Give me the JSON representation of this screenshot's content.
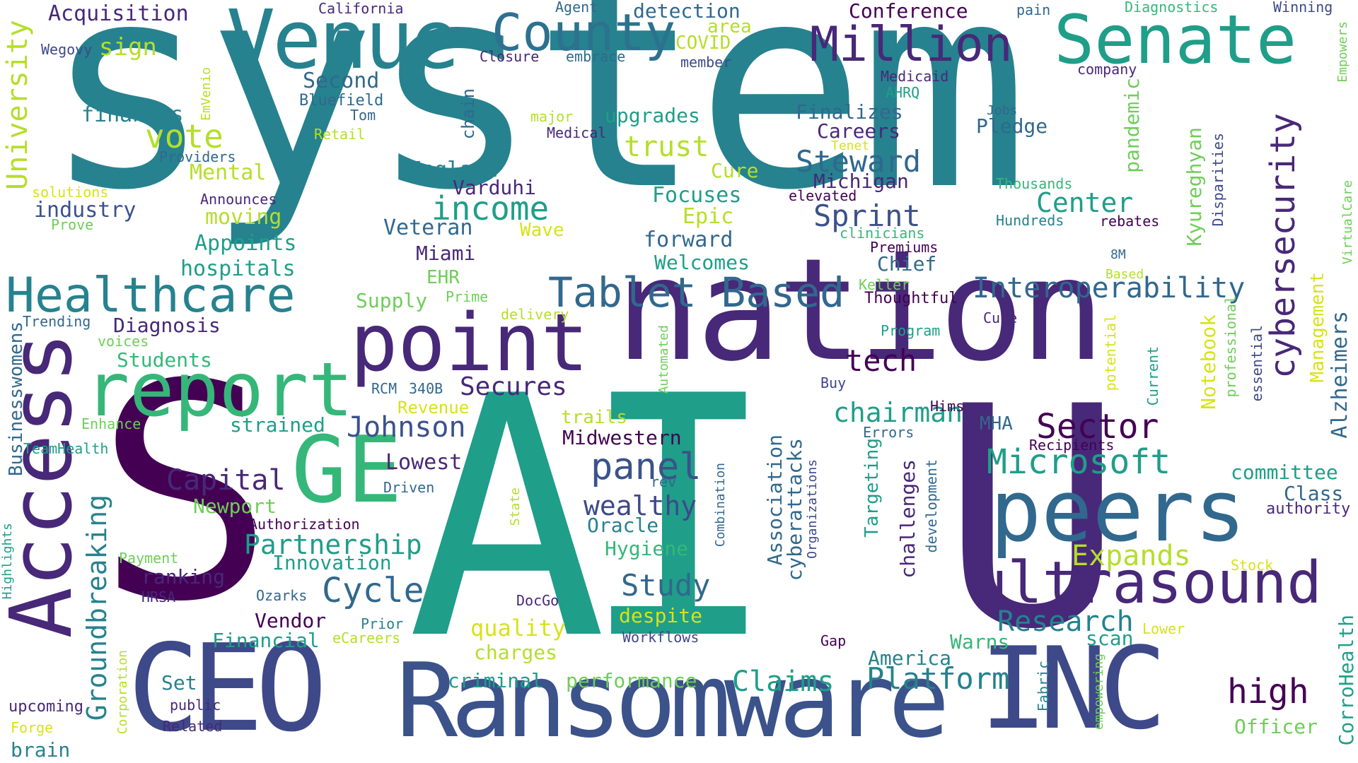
{
  "words": {
    "system": "system",
    "AI": "AI",
    "S": "S",
    "U": "U",
    "nation": "nation",
    "CEO": "CEO",
    "Ransomware": "Ransomware",
    "INC": "INC",
    "Access": "Access",
    "Venue": "Venue",
    "Senate": "Senate",
    "County": "County",
    "Million": "Million",
    "point": "point",
    "report": "report",
    "GE": "GE",
    "peers": "peers",
    "ultrasound": "ultrasound",
    "Healthcare": "Healthcare",
    "TabletBased": "Tablet Based",
    "Interoperability": "Interoperability",
    "cybersecurity": "cybersecurity",
    "Microsoft": "Microsoft",
    "Sector": "Sector",
    "panel": "panel",
    "Cycle": "Cycle",
    "Platform": "Platform",
    "high": "high",
    "Research": "Research",
    "income": "income",
    "Steward": "Steward",
    "Sprint": "Sprint",
    "Johnson": "Johnson",
    "Capital": "Capital",
    "Partnership": "Partnership",
    "wealthy": "wealthy",
    "Study": "Study",
    "Groundbreaking": "Groundbreaking",
    "University": "University",
    "tech": "tech",
    "chairman": "chairman",
    "Claims": "Claims",
    "Expands": "Expands",
    "vote": "vote",
    "trust": "trust",
    "Acquisition": "Acquisition",
    "sign": "sign",
    "Second": "Second",
    "finances": "finances",
    "industry": "industry",
    "moving": "moving",
    "Appoints": "Appoints",
    "hospitals": "hospitals",
    "Mental": "Mental",
    "England": "England",
    "Varduhi": "Varduhi",
    "Veteran": "Veteran",
    "Miami": "Miami",
    "Cure": "Cure",
    "Focuses": "Focuses",
    "Epic": "Epic",
    "forward": "forward",
    "Welcomes": "Welcomes",
    "Center": "Center",
    "Finalizes": "Finalizes",
    "Careers": "Careers",
    "Michigan": "Michigan",
    "Chief": "Chief",
    "Pledge": "Pledge",
    "upgrades": "upgrades",
    "Conference": "Conference",
    "detection": "detection",
    "area": "area",
    "COVID": "COVID",
    "California": "California",
    "Agent": "Agent",
    "Diagnostics": "Diagnostics",
    "Winning": "Winning",
    "pain": "pain",
    "Wegovy": "Wegovy",
    "Closure": "Closure",
    "embrace": "embrace",
    "member": "member",
    "Medicaid": "Medicaid",
    "AHRQ": "AHRQ",
    "company": "company",
    "Empowers": "Empowers",
    "Bluefield": "Bluefield",
    "Tom": "Tom",
    "Retail": "Retail",
    "major": "major",
    "Medical": "Medical",
    "chain": "chain",
    "EmVenio": "EmVenio",
    "Providers": "Providers",
    "solutions": "solutions",
    "Announces": "Announces",
    "Prove": "Prove",
    "Wave": "Wave",
    "Jobs": "Jobs",
    "Tenet": "Tenet",
    "Thousands": "Thousands",
    "elevated": "elevated",
    "clinicians": "clinicians",
    "Hundreds": "Hundreds",
    "rebates": "rebates",
    "Premiums": "Premiums",
    "8M": "8M",
    "Disparities": "Disparities",
    "VirtualCare": "VirtualCare",
    "Kyureghyan": "Kyureghyan",
    "pandemic": "pandemic",
    "Keller": "Keller",
    "Thoughtful": "Thoughtful",
    "Based": "Based",
    "Management": "Management",
    "Alzheimers": "Alzheimers",
    "Supply": "Supply",
    "EHR": "EHR",
    "Prime": "Prime",
    "delivery": "delivery",
    "Trending": "Trending",
    "Diagnosis": "Diagnosis",
    "voices": "voices",
    "Students": "Students",
    "Secures": "Secures",
    "RCM": "RCM",
    "340B": "340B",
    "Revenue": "Revenue",
    "Program": "Program",
    "Cube": "Cube",
    "Notebook": "Notebook",
    "professional": "professional",
    "essential": "essential",
    "potential": "potential",
    "Current": "Current",
    "Automated": "Automated",
    "Buy": "Buy",
    "Hims": "Hims",
    "Errors": "Errors",
    "MHA": "MHA",
    "Recipients": "Recipients",
    "Businesswomens": "Businesswomens",
    "Enhance": "Enhance",
    "strained": "strained",
    "trails": "trails",
    "TeamHealth": "TeamHealth",
    "Midwestern": "Midwestern",
    "rev": "rev",
    "Lowest": "Lowest",
    "Driven": "Driven",
    "Association": "Association",
    "cyberattacks": "cyberattacks",
    "Targeting": "Targeting",
    "challenges": "challenges",
    "development": "development",
    "Organizations": "Organizations",
    "Combination": "Combination",
    "State": "State",
    "Newport": "Newport",
    "Authorization": "Authorization",
    "Oracle": "Oracle",
    "Hygiene": "Hygiene",
    "Innovation": "Innovation",
    "Payment": "Payment",
    "HRSA": "HRSA",
    "ranking": "ranking",
    "Highlights": "Highlights",
    "Ozarks": "Ozarks",
    "DocGo": "DocGo",
    "Vendor": "Vendor",
    "Prior": "Prior",
    "quality": "quality",
    "despite": "despite",
    "Financial": "Financial",
    "eCareers": "eCareers",
    "charges": "charges",
    "Workflows": "Workflows",
    "Gap": "Gap",
    "Warns": "Warns",
    "scan": "scan",
    "Lower": "Lower",
    "committee": "committee",
    "Class": "Class",
    "authority": "authority",
    "Stock": "Stock",
    "CorroHealth": "CorroHealth",
    "Officer": "Officer",
    "America": "America",
    "Fabric": "Fabric",
    "empowering": "empowering",
    "criminal": "criminal",
    "performance": "performance",
    "Set": "Set",
    "public": "public",
    "upcoming": "upcoming",
    "Related": "Related",
    "Forge": "Forge",
    "Corporation": "Corporation",
    "brain": "brain"
  }
}
